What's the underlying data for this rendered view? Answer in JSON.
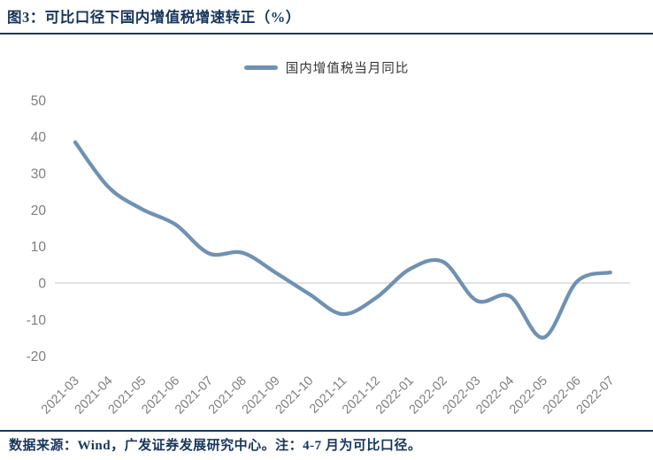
{
  "header": {
    "title": "图3：可比口径下国内增值税增速转正（%）"
  },
  "legend": {
    "label": "国内增值税当月同比"
  },
  "chart_data": {
    "type": "line",
    "title": "图3：可比口径下国内增值税增速转正（%）",
    "series": [
      {
        "name": "国内增值税当月同比",
        "values": [
          38.5,
          26.2,
          20.2,
          16.0,
          8.1,
          8.3,
          2.8,
          -3.0,
          -8.5,
          -4.0,
          3.8,
          5.8,
          -4.8,
          -3.6,
          -14.9,
          0.4,
          2.9
        ]
      }
    ],
    "categories": [
      "2021-03",
      "2021-04",
      "2021-05",
      "2021-06",
      "2021-07",
      "2021-08",
      "2021-09",
      "2021-10",
      "2021-11",
      "2021-12",
      "2022-01",
      "2022-02",
      "2022-03",
      "2022-04",
      "2022-05",
      "2022-06",
      "2022-07"
    ],
    "xlabel": "",
    "ylabel": "",
    "ylim": [
      -20,
      50
    ],
    "yticks": [
      50,
      40,
      30,
      20,
      10,
      0,
      -10,
      -20
    ],
    "grid": "zero-line-only",
    "line_style": "smooth",
    "legend_position": "top-center"
  },
  "colors": {
    "navy": "#17365d",
    "line_blue": "#6f91b4",
    "axis_gray": "#7f7f7f",
    "gridline_gray": "#d9d9d9"
  },
  "footer": {
    "text": "数据来源：Wind，广发证券发展研究中心。注：4-7 月为可比口径。"
  }
}
